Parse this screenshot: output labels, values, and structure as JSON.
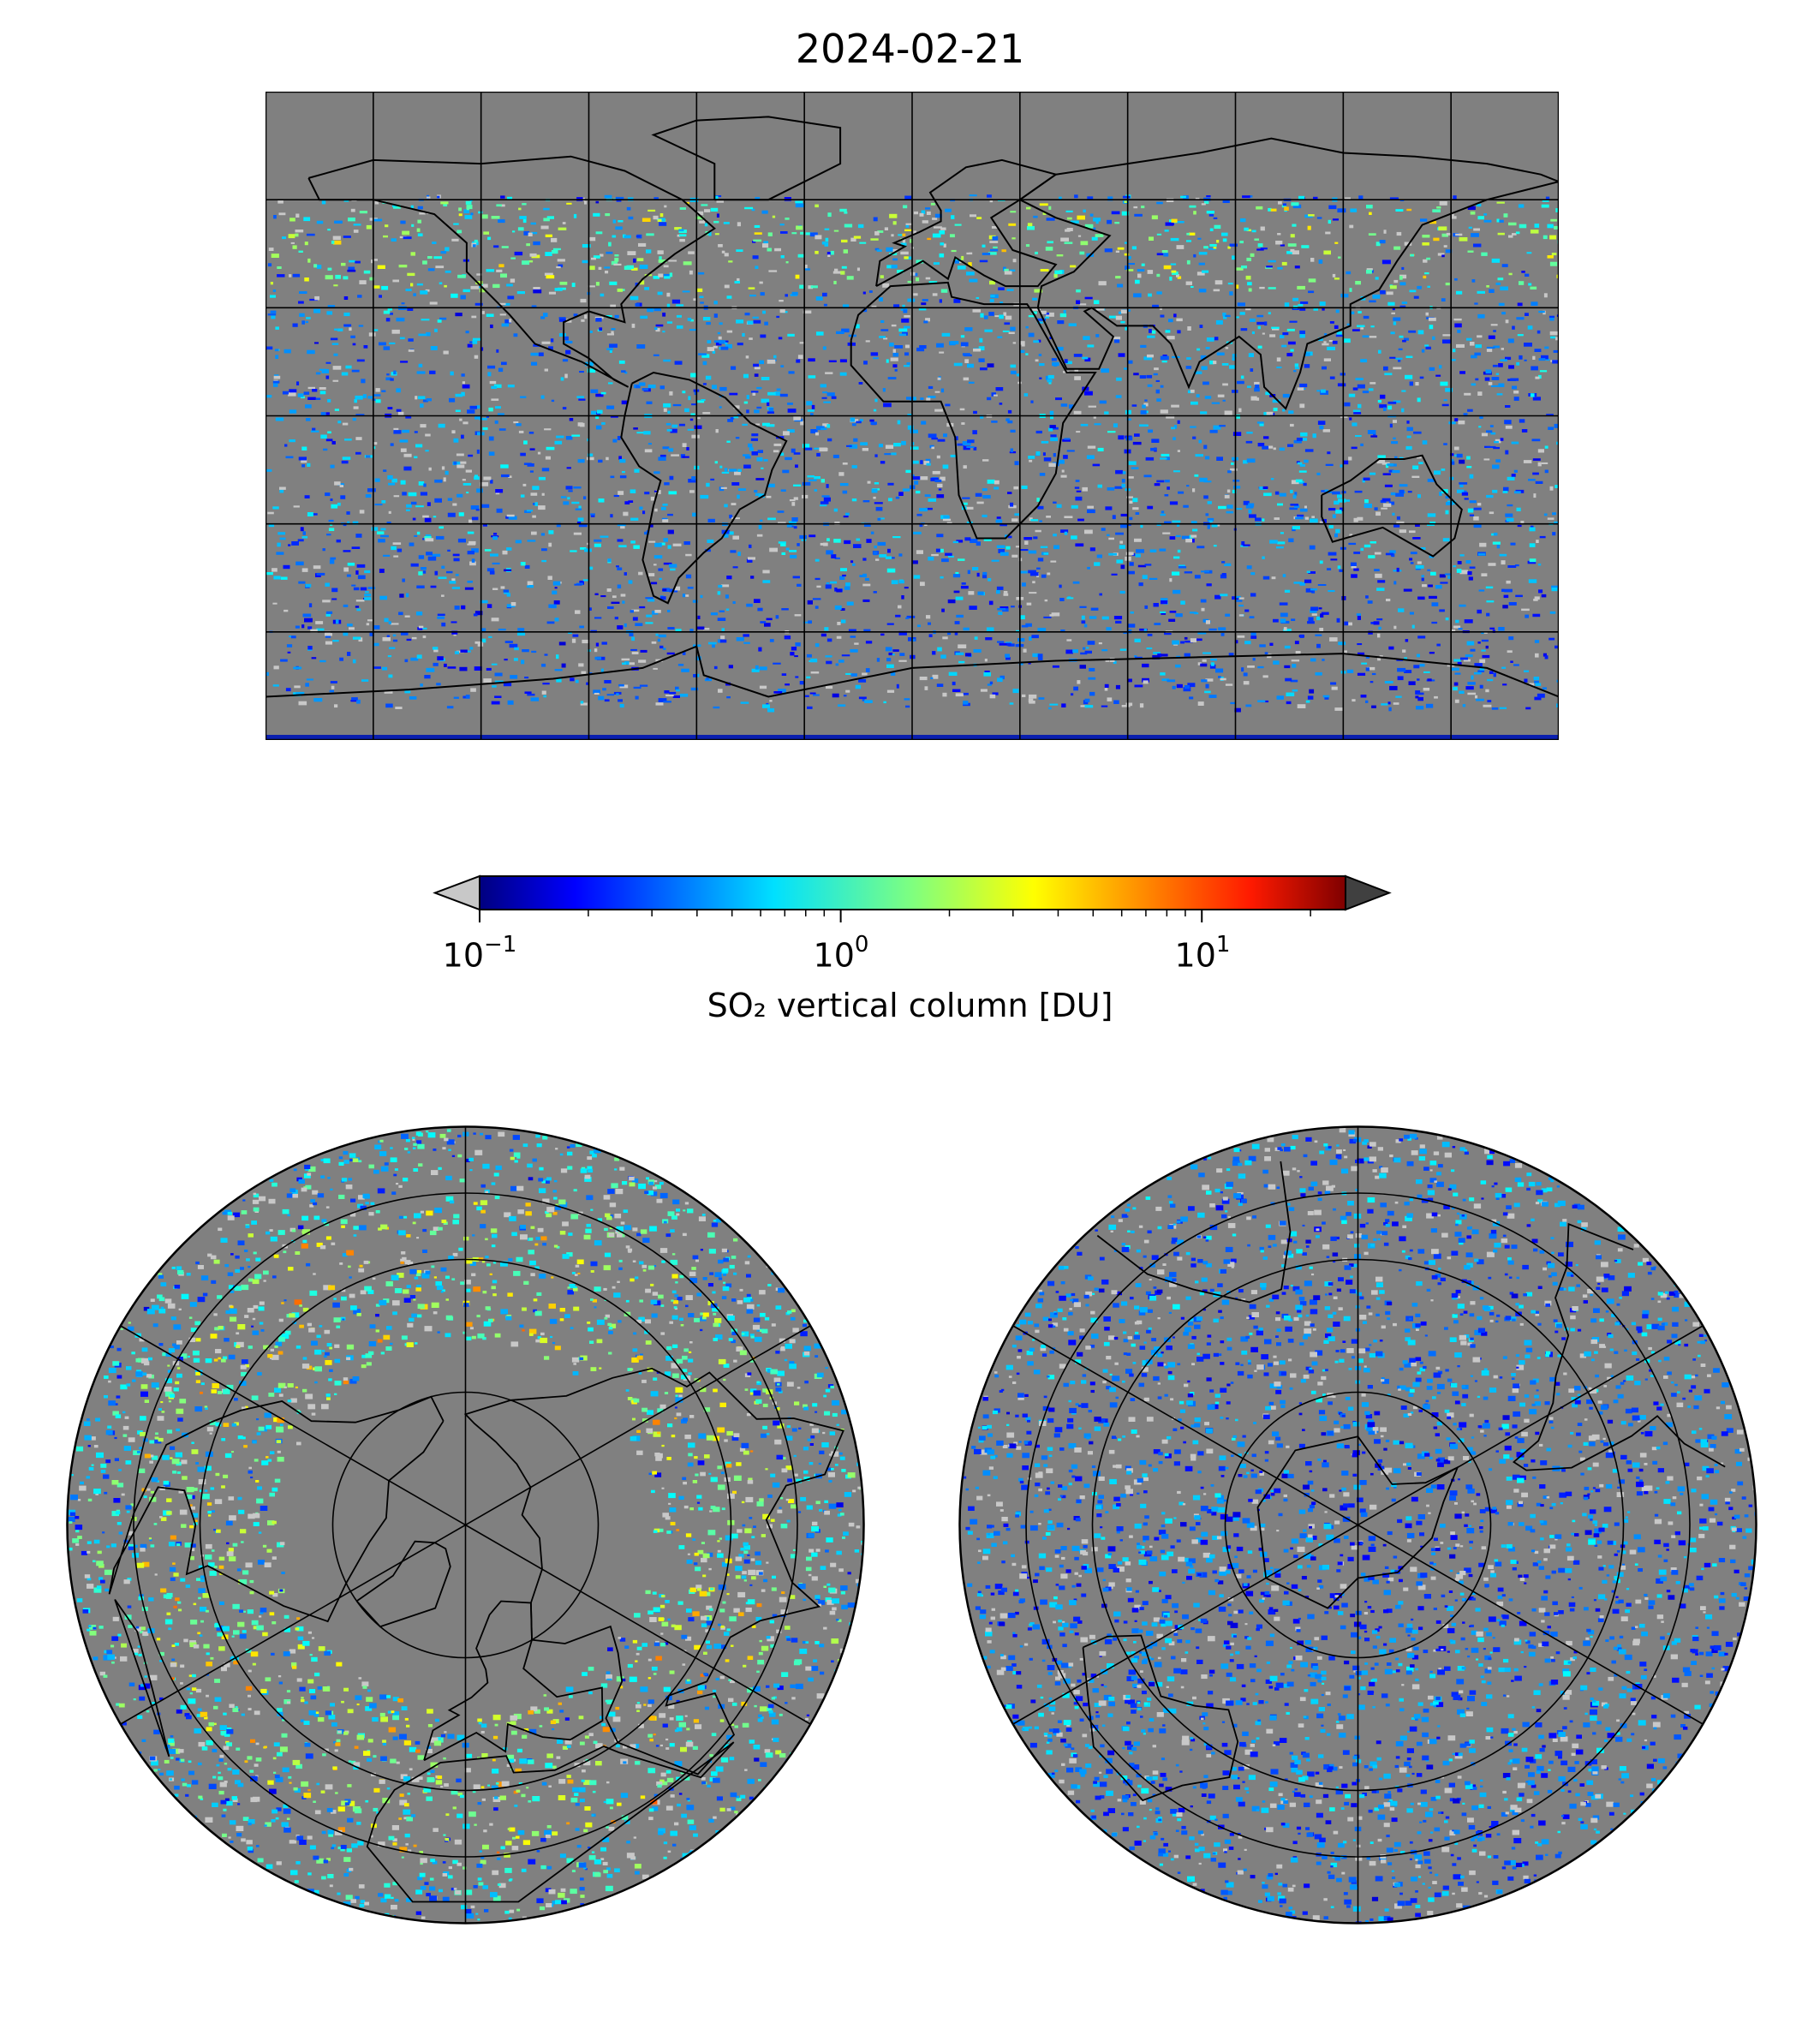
{
  "figure": {
    "title": "2024-02-21"
  },
  "colorbar": {
    "label": "SO₂ vertical column [DU]",
    "scale": "log",
    "range": [
      0.1,
      25
    ],
    "ticks": [
      {
        "base": "10",
        "exp": "−1",
        "value": 0.1
      },
      {
        "base": "10",
        "exp": "0",
        "value": 1
      },
      {
        "base": "10",
        "exp": "1",
        "value": 10
      }
    ],
    "colormap": "jet",
    "under_color": "#c8c8c8",
    "over_color": "#404040",
    "extend": "both"
  },
  "maps": {
    "global": {
      "projection": "plate-carree",
      "background": "#808080"
    },
    "north_polar": {
      "projection": "north-polar-stereographic",
      "background": "#808080"
    },
    "south_polar": {
      "projection": "south-polar-stereographic",
      "background": "#808080"
    }
  }
}
